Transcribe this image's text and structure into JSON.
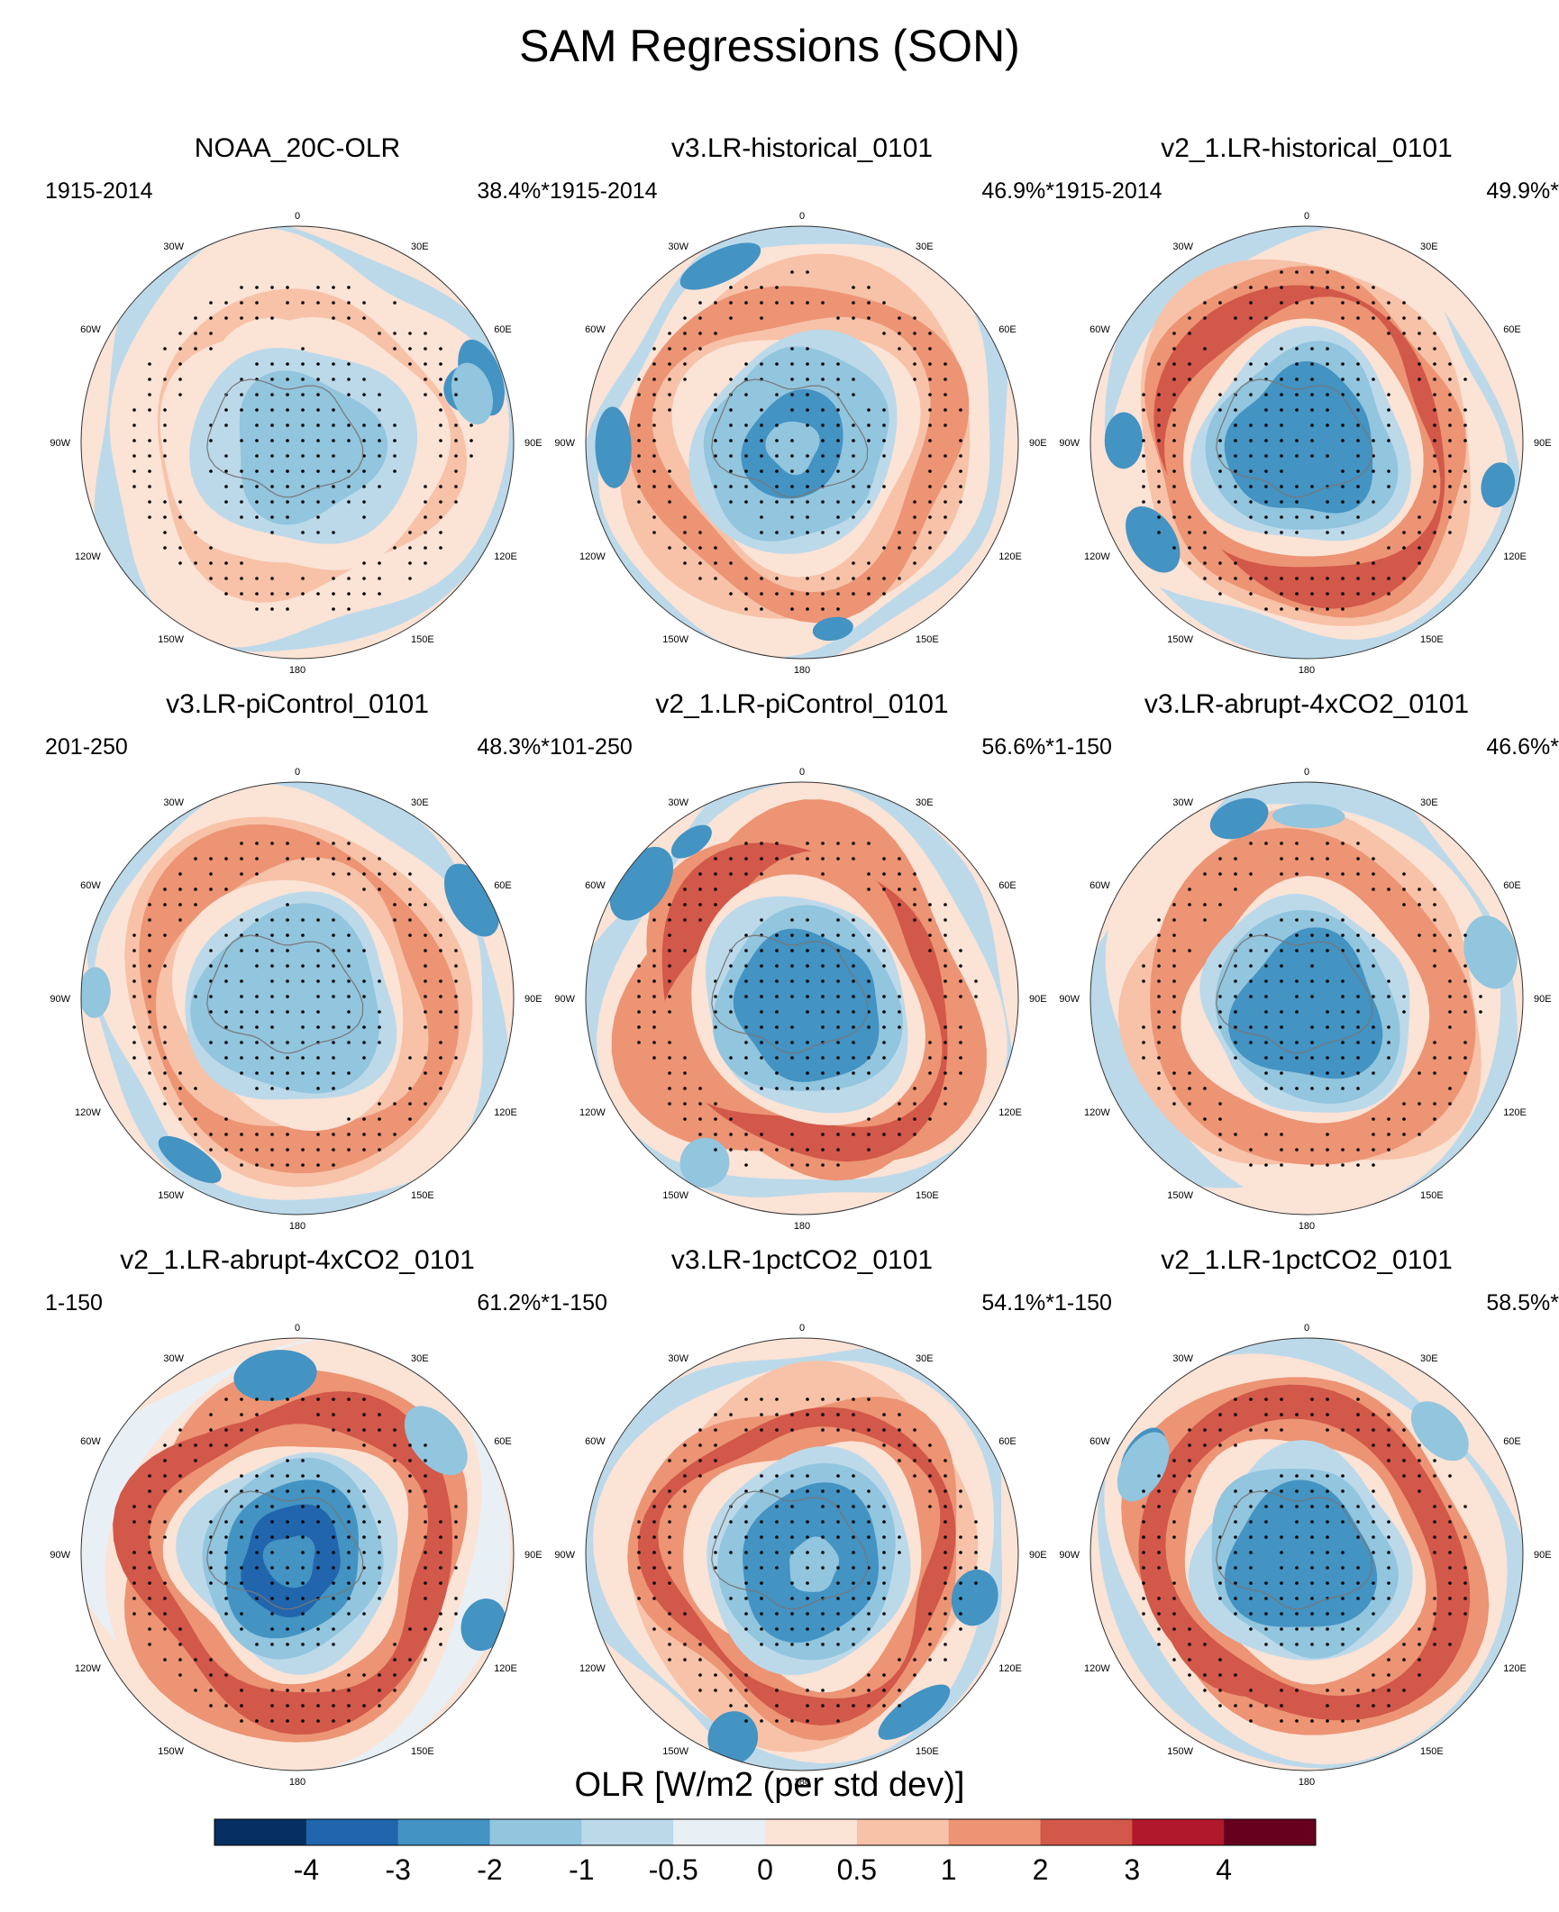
{
  "title": "SAM Regressions (SON)",
  "chart_data": {
    "type": "heatmap",
    "projection": "south-polar-stereographic",
    "panels": [
      {
        "name": "NOAA_20C-OLR",
        "period": "1915-2014",
        "variance": "38.4%*",
        "seed": 3,
        "ring": 0.55,
        "core": -1.5
      },
      {
        "name": "v3.LR-historical_0101",
        "period": "1915-2014",
        "variance": "46.9%*",
        "seed": 7,
        "ring": 1.4,
        "core": -2.2
      },
      {
        "name": "v2_1.LR-historical_0101",
        "period": "1915-2014",
        "variance": "49.9%*",
        "seed": 11,
        "ring": 2.2,
        "core": -2.6
      },
      {
        "name": "v3.LR-piControl_0101",
        "period": "201-250",
        "variance": "48.3%*",
        "seed": 17,
        "ring": 1.6,
        "core": -2.0
      },
      {
        "name": "v2_1.LR-piControl_0101",
        "period": "101-250",
        "variance": "56.6%*",
        "seed": 23,
        "ring": 2.4,
        "core": -2.8
      },
      {
        "name": "v3.LR-abrupt-4xCO2_0101",
        "period": "1-150",
        "variance": "46.6%*",
        "seed": 29,
        "ring": 1.8,
        "core": -2.6
      },
      {
        "name": "v2_1.LR-abrupt-4xCO2_0101",
        "period": "1-150",
        "variance": "61.2%*",
        "seed": 31,
        "ring": 2.9,
        "core": -3.2
      },
      {
        "name": "v3.LR-1pctCO2_0101",
        "period": "1-150",
        "variance": "54.1%*",
        "seed": 37,
        "ring": 2.0,
        "core": -2.5
      },
      {
        "name": "v2_1.LR-1pctCO2_0101",
        "period": "1-150",
        "variance": "58.5%*",
        "seed": 41,
        "ring": 2.6,
        "core": -2.7
      }
    ],
    "longitude_labels": [
      "0",
      "30E",
      "60E",
      "90E",
      "120E",
      "150E",
      "180",
      "150W",
      "120W",
      "90W",
      "60W",
      "30W"
    ],
    "colorbar": {
      "title": "OLR [W/m2 (per std dev)]",
      "tick_labels": [
        "-4",
        "-3",
        "-2",
        "-1",
        "-0.5",
        "0",
        "0.5",
        "1",
        "2",
        "3",
        "4"
      ],
      "levels": [
        -4,
        -3,
        -2,
        -1,
        -0.5,
        0,
        0.5,
        1,
        2,
        3,
        4
      ],
      "colors": [
        "#053061",
        "#2166ac",
        "#4393c3",
        "#92c5de",
        "#bcd9ea",
        "#e8f0f5",
        "#fbe3d6",
        "#f7c2a8",
        "#ec9474",
        "#d25849",
        "#b2182b",
        "#67001f"
      ]
    }
  }
}
